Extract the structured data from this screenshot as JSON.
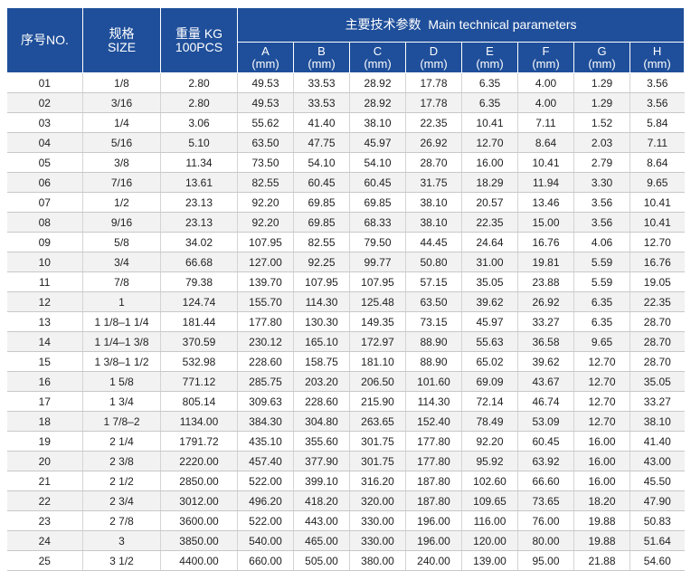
{
  "header": {
    "no_label": "序号NO.",
    "size_label_cn": "规格",
    "size_label_en": "SIZE",
    "weight_label_cn": "重量 KG",
    "weight_label_en": "100PCS",
    "main_params_label": "主要技术参数  Main technical parameters",
    "columns": [
      {
        "letter": "A",
        "unit": "(mm)"
      },
      {
        "letter": "B",
        "unit": "(mm)"
      },
      {
        "letter": "C",
        "unit": "(mm)"
      },
      {
        "letter": "D",
        "unit": "(mm)"
      },
      {
        "letter": "E",
        "unit": "(mm)"
      },
      {
        "letter": "F",
        "unit": "(mm)"
      },
      {
        "letter": "G",
        "unit": "(mm)"
      },
      {
        "letter": "H",
        "unit": "(mm)"
      }
    ]
  },
  "rows": [
    [
      "01",
      "1/8",
      "2.80",
      "49.53",
      "33.53",
      "28.92",
      "17.78",
      "6.35",
      "4.00",
      "1.29",
      "3.56"
    ],
    [
      "02",
      "3/16",
      "2.80",
      "49.53",
      "33.53",
      "28.92",
      "17.78",
      "6.35",
      "4.00",
      "1.29",
      "3.56"
    ],
    [
      "03",
      "1/4",
      "3.06",
      "55.62",
      "41.40",
      "38.10",
      "22.35",
      "10.41",
      "7.11",
      "1.52",
      "5.84"
    ],
    [
      "04",
      "5/16",
      "5.10",
      "63.50",
      "47.75",
      "45.97",
      "26.92",
      "12.70",
      "8.64",
      "2.03",
      "7.11"
    ],
    [
      "05",
      "3/8",
      "11.34",
      "73.50",
      "54.10",
      "54.10",
      "28.70",
      "16.00",
      "10.41",
      "2.79",
      "8.64"
    ],
    [
      "06",
      "7/16",
      "13.61",
      "82.55",
      "60.45",
      "60.45",
      "31.75",
      "18.29",
      "11.94",
      "3.30",
      "9.65"
    ],
    [
      "07",
      "1/2",
      "23.13",
      "92.20",
      "69.85",
      "69.85",
      "38.10",
      "20.57",
      "13.46",
      "3.56",
      "10.41"
    ],
    [
      "08",
      "9/16",
      "23.13",
      "92.20",
      "69.85",
      "68.33",
      "38.10",
      "22.35",
      "15.00",
      "3.56",
      "10.41"
    ],
    [
      "09",
      "5/8",
      "34.02",
      "107.95",
      "82.55",
      "79.50",
      "44.45",
      "24.64",
      "16.76",
      "4.06",
      "12.70"
    ],
    [
      "10",
      "3/4",
      "66.68",
      "127.00",
      "92.25",
      "99.77",
      "50.80",
      "31.00",
      "19.81",
      "5.59",
      "16.76"
    ],
    [
      "11",
      "7/8",
      "79.38",
      "139.70",
      "107.95",
      "107.95",
      "57.15",
      "35.05",
      "23.88",
      "5.59",
      "19.05"
    ],
    [
      "12",
      "1",
      "124.74",
      "155.70",
      "114.30",
      "125.48",
      "63.50",
      "39.62",
      "26.92",
      "6.35",
      "22.35"
    ],
    [
      "13",
      "1 1/8–1 1/4",
      "181.44",
      "177.80",
      "130.30",
      "149.35",
      "73.15",
      "45.97",
      "33.27",
      "6.35",
      "28.70"
    ],
    [
      "14",
      "1 1/4–1 3/8",
      "370.59",
      "230.12",
      "165.10",
      "172.97",
      "88.90",
      "55.63",
      "36.58",
      "9.65",
      "28.70"
    ],
    [
      "15",
      "1 3/8–1 1/2",
      "532.98",
      "228.60",
      "158.75",
      "181.10",
      "88.90",
      "65.02",
      "39.62",
      "12.70",
      "28.70"
    ],
    [
      "16",
      "1 5/8",
      "771.12",
      "285.75",
      "203.20",
      "206.50",
      "101.60",
      "69.09",
      "43.67",
      "12.70",
      "35.05"
    ],
    [
      "17",
      "1 3/4",
      "805.14",
      "309.63",
      "228.60",
      "215.90",
      "114.30",
      "72.14",
      "46.74",
      "12.70",
      "33.27"
    ],
    [
      "18",
      "1 7/8–2",
      "1134.00",
      "384.30",
      "304.80",
      "263.65",
      "152.40",
      "78.49",
      "53.09",
      "12.70",
      "38.10"
    ],
    [
      "19",
      "2 1/4",
      "1791.72",
      "435.10",
      "355.60",
      "301.75",
      "177.80",
      "92.20",
      "60.45",
      "16.00",
      "41.40"
    ],
    [
      "20",
      "2 3/8",
      "2220.00",
      "457.40",
      "377.90",
      "301.75",
      "177.80",
      "95.92",
      "63.92",
      "16.00",
      "43.00"
    ],
    [
      "21",
      "2 1/2",
      "2850.00",
      "522.00",
      "399.10",
      "316.20",
      "187.80",
      "102.60",
      "66.60",
      "16.00",
      "45.50"
    ],
    [
      "22",
      "2 3/4",
      "3012.00",
      "496.20",
      "418.20",
      "320.00",
      "187.80",
      "109.65",
      "73.65",
      "18.20",
      "47.90"
    ],
    [
      "23",
      "2 7/8",
      "3600.00",
      "522.00",
      "443.00",
      "330.00",
      "196.00",
      "116.00",
      "76.00",
      "19.88",
      "50.83"
    ],
    [
      "24",
      "3",
      "3850.00",
      "540.00",
      "465.00",
      "330.00",
      "196.00",
      "120.00",
      "80.00",
      "19.88",
      "51.64"
    ],
    [
      "25",
      "3 1/2",
      "4400.00",
      "660.00",
      "505.00",
      "380.00",
      "240.00",
      "139.00",
      "95.00",
      "21.88",
      "54.60"
    ]
  ],
  "colors": {
    "header_bg": "#1f4f9a",
    "header_text": "#ffffff",
    "row_alt_bg": "#f2f2f2",
    "grid": "#c8c8c8"
  }
}
